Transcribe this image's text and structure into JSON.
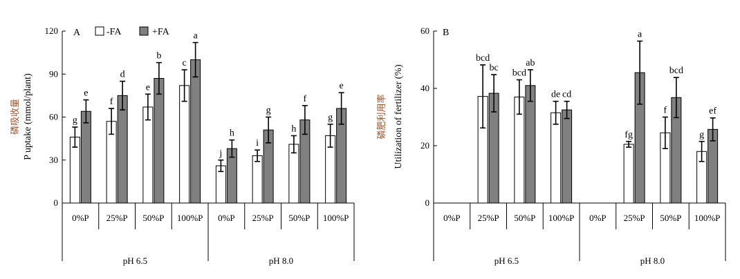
{
  "legend": {
    "minus_label": "-FA",
    "plus_label": "+FA"
  },
  "colors": {
    "minus_fill": "#ffffff",
    "plus_fill": "#808080",
    "ink": "#000000",
    "cjk_label": "#a0522d"
  },
  "charts": [
    {
      "panel": "A",
      "ylabel_cn": "磷吸收量",
      "ylabel_en": "P uptake (mmol/plant)",
      "yticks": [
        "0",
        "30",
        "60",
        "90",
        "120"
      ]
    },
    {
      "panel": "B",
      "ylabel_cn": "磷肥利用率",
      "ylabel_en": "Utilization of fertilizer (%)",
      "yticks": [
        "0",
        "20",
        "40",
        "60"
      ]
    }
  ],
  "chart_data": [
    {
      "type": "bar",
      "title": "",
      "ylabel": "P uptake (mmol/plant)",
      "ylim": [
        0,
        120
      ],
      "groups": [
        "pH 6.5",
        "pH 8.0"
      ],
      "categories": [
        "0%P",
        "25%P",
        "50%P",
        "100%P",
        "0%P",
        "25%P",
        "50%P",
        "100%P"
      ],
      "series": [
        {
          "name": "-FA",
          "values": [
            46,
            57,
            67,
            82,
            26,
            33,
            41,
            47
          ],
          "errors": [
            7,
            9,
            9,
            11,
            4,
            4,
            6,
            8
          ],
          "letters": [
            "g",
            "f",
            "e",
            "c",
            "j",
            "i",
            "h",
            "g"
          ]
        },
        {
          "name": "+FA",
          "values": [
            64,
            75,
            87,
            100,
            38,
            51,
            58,
            66
          ],
          "errors": [
            8,
            10,
            11,
            12,
            6,
            9,
            10,
            11
          ],
          "letters": [
            "e",
            "d",
            "b",
            "a",
            "h",
            "g",
            "f",
            "e"
          ]
        }
      ],
      "grid": false
    },
    {
      "type": "bar",
      "title": "",
      "ylabel": "Utilization of fertilizer (%)",
      "ylim": [
        0,
        60
      ],
      "groups": [
        "pH 6.5",
        "pH 8.0"
      ],
      "categories": [
        "0%P",
        "25%P",
        "50%P",
        "100%P",
        "0%P",
        "25%P",
        "50%P",
        "100%P"
      ],
      "series": [
        {
          "name": "-FA",
          "values": [
            null,
            37.2,
            37,
            31.5,
            null,
            20.5,
            24.5,
            18
          ],
          "errors": [
            null,
            11,
            6,
            4,
            null,
            1,
            5.5,
            3.5
          ],
          "letters": [
            "",
            "bcd",
            "bcd",
            "de",
            "",
            "fg",
            "f",
            "g"
          ]
        },
        {
          "name": "+FA",
          "values": [
            null,
            38.3,
            41,
            32.5,
            null,
            45.5,
            36.8,
            25.7
          ],
          "errors": [
            null,
            6.5,
            5.5,
            3,
            null,
            11,
            7,
            4
          ],
          "letters": [
            "",
            "bc",
            "ab",
            "cd",
            "",
            "a",
            "bcd",
            "ef"
          ]
        }
      ],
      "grid": false
    }
  ]
}
